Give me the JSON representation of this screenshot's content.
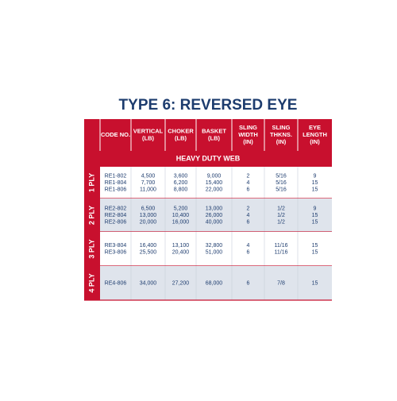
{
  "title": "TYPE 6: REVERSED EYE",
  "table": {
    "headers": [
      [
        "CODE NO."
      ],
      [
        "VERTICAL",
        "(LB)"
      ],
      [
        "CHOKER",
        "(LB)"
      ],
      [
        "BASKET",
        "(LB)"
      ],
      [
        "SLING",
        "WIDTH",
        "(IN)"
      ],
      [
        "SLING",
        "THKNS.",
        "(IN)"
      ],
      [
        "EYE",
        "LENGTH",
        "(IN)"
      ]
    ],
    "section": "HEAVY DUTY WEB",
    "groups": [
      {
        "label": "1 PLY",
        "rows": [
          [
            "RE1-802",
            "4,500",
            "3,600",
            "9,000",
            "2",
            "5/16",
            "9"
          ],
          [
            "RE1-804",
            "7,700",
            "6,200",
            "15,400",
            "4",
            "5/16",
            "15"
          ],
          [
            "RE1-806",
            "11,000",
            "8,800",
            "22,000",
            "6",
            "5/16",
            "15"
          ]
        ]
      },
      {
        "label": "2 PLY",
        "rows": [
          [
            "RE2-802",
            "6,500",
            "5,200",
            "13,000",
            "2",
            "1/2",
            "9"
          ],
          [
            "RE2-804",
            "13,000",
            "10,400",
            "26,000",
            "4",
            "1/2",
            "15"
          ],
          [
            "RE2-806",
            "20,000",
            "16,000",
            "40,000",
            "6",
            "1/2",
            "15"
          ]
        ]
      },
      {
        "label": "3 PLY",
        "rows": [
          [
            "RE3-804",
            "16,400",
            "13,100",
            "32,800",
            "4",
            "11/16",
            "15"
          ],
          [
            "RE3-806",
            "25,500",
            "20,400",
            "51,000",
            "6",
            "11/16",
            "15"
          ]
        ]
      },
      {
        "label": "4 PLY",
        "rows": [
          [
            "RE4-806",
            "34,000",
            "27,200",
            "68,000",
            "6",
            "7/8",
            "15"
          ]
        ]
      }
    ]
  }
}
